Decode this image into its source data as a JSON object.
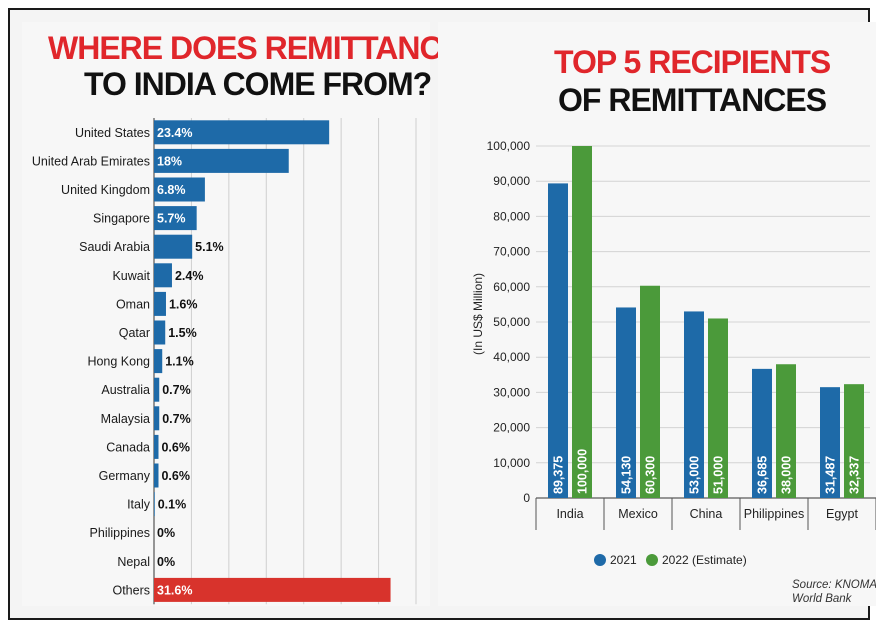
{
  "left_chart": {
    "title_line1": "WHERE DOES REMITTANCES",
    "title_line2": "TO INDIA COME FROM?"
  },
  "right_chart": {
    "title_line1": "TOP 5 RECIPIENTS",
    "title_line2": "OF REMITTANCES",
    "source": "Source: KNOMAD,",
    "source2": "World Bank"
  },
  "chart_data": [
    {
      "type": "bar",
      "orientation": "horizontal",
      "title": "WHERE DOES REMITTANCES TO INDIA COME FROM?",
      "categories": [
        "United States",
        "United Arab Emirates",
        "United Kingdom",
        "Singapore",
        "Saudi Arabia",
        "Kuwait",
        "Oman",
        "Qatar",
        "Hong Kong",
        "Australia",
        "Malaysia",
        "Canada",
        "Germany",
        "Italy",
        "Philippines",
        "Nepal",
        "Others"
      ],
      "values": [
        23.4,
        18,
        6.8,
        5.7,
        5.1,
        2.4,
        1.6,
        1.5,
        1.1,
        0.7,
        0.7,
        0.6,
        0.6,
        0.1,
        0,
        0,
        31.6
      ],
      "labels": [
        "23.4%",
        "18%",
        "6.8%",
        "5.7%",
        "5.1%",
        "2.4%",
        "1.6%",
        "1.5%",
        "1.1%",
        "0.7%",
        "0.7%",
        "0.6%",
        "0.6%",
        "0.1%",
        "0%",
        "0%",
        "31.6%"
      ],
      "xlim": [
        0,
        35
      ],
      "xticks": [
        "0",
        "5%",
        "10%",
        "15%",
        "20%",
        "25%",
        "30%",
        "35%"
      ],
      "colors": {
        "default": "#1e6aa8",
        "highlight": "#d8332c"
      },
      "grid": true
    },
    {
      "type": "bar",
      "title": "TOP 5 RECIPIENTS OF REMITTANCES",
      "categories": [
        "India",
        "Mexico",
        "China",
        "Philippines",
        "Egypt"
      ],
      "series": [
        {
          "name": "2021",
          "values": [
            89375,
            54130,
            53000,
            36685,
            31487
          ],
          "labels": [
            "89,375",
            "54,130",
            "53,000",
            "36,685",
            "31,487"
          ],
          "color": "#1e6aa8"
        },
        {
          "name": "2022 (Estimate)",
          "values": [
            100000,
            60300,
            51000,
            38000,
            32337
          ],
          "labels": [
            "100,000",
            "60,300",
            "51,000",
            "38,000",
            "32,337"
          ],
          "color": "#4b9a3a"
        }
      ],
      "ylabel": "(In US$ Million)",
      "ylim": [
        0,
        100000
      ],
      "yticks": [
        "0",
        "10,000",
        "20,000",
        "30,000",
        "40,000",
        "50,000",
        "60,000",
        "70,000",
        "80,000",
        "90,000",
        "100,000"
      ],
      "legend": "bottom",
      "grid": true
    }
  ]
}
